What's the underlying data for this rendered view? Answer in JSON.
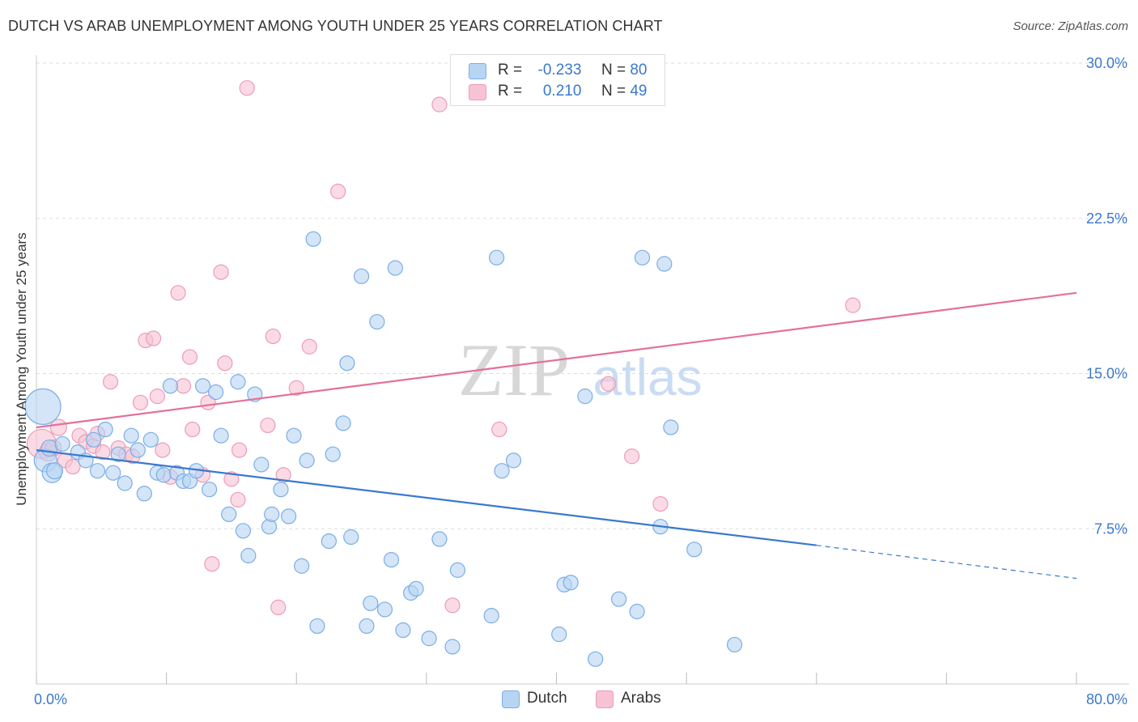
{
  "title": "DUTCH VS ARAB UNEMPLOYMENT AMONG YOUTH UNDER 25 YEARS CORRELATION CHART",
  "source": "Source: ZipAtlas.com",
  "watermark": {
    "zip": "ZIP",
    "atlas": "atlas"
  },
  "legend": {
    "r_label": "R =",
    "n_label": "N =",
    "dutch": {
      "r": "-0.233",
      "n": "80"
    },
    "arabs": {
      "r": "0.210",
      "n": "49"
    }
  },
  "colors": {
    "dutch_fill": "#b8d4f3",
    "dutch_stroke": "#7aaee6",
    "dutch_line": "#3a78d0",
    "arabs_fill": "#f7c3d4",
    "arabs_stroke": "#ee9bb6",
    "arabs_line": "#e56f9a",
    "tick_label": "#3a78d0",
    "grid": "#dddddd"
  },
  "chart_data": {
    "type": "scatter",
    "xlabel": "",
    "ylabel": "Unemployment Among Youth under 25 years",
    "xlim": [
      0,
      80
    ],
    "ylim": [
      0,
      30
    ],
    "x_tick_labels": [
      {
        "value": 0,
        "label": "0.0%"
      },
      {
        "value": 80,
        "label": "80.0%"
      }
    ],
    "y_tick_labels": [
      {
        "value": 7.5,
        "label": "7.5%"
      },
      {
        "value": 15,
        "label": "15.0%"
      },
      {
        "value": 22.5,
        "label": "22.5%"
      },
      {
        "value": 30,
        "label": "30.0%"
      }
    ],
    "grid": true,
    "legend_position": "top-center",
    "series": [
      {
        "name": "Dutch",
        "trend": {
          "x0": 0,
          "y0": 11.3,
          "x1": 60,
          "y1": 6.7,
          "dashed_to_x": 80,
          "dashed_to_y": 5.1
        },
        "points": [
          [
            0.5,
            13.4,
            22
          ],
          [
            0.7,
            10.8,
            14
          ],
          [
            1.0,
            11.4,
            10
          ],
          [
            1.2,
            10.2,
            12
          ],
          [
            1.4,
            10.3,
            10
          ],
          [
            2.0,
            11.6,
            9
          ],
          [
            3.2,
            11.2,
            9
          ],
          [
            3.8,
            10.8,
            9
          ],
          [
            4.4,
            11.8,
            9
          ],
          [
            4.7,
            10.3,
            9
          ],
          [
            5.3,
            12.3,
            9
          ],
          [
            5.9,
            10.2,
            9
          ],
          [
            6.3,
            11.1,
            9
          ],
          [
            6.8,
            9.7,
            9
          ],
          [
            7.3,
            12.0,
            9
          ],
          [
            7.8,
            11.3,
            9
          ],
          [
            8.3,
            9.2,
            9
          ],
          [
            8.8,
            11.8,
            9
          ],
          [
            9.3,
            10.2,
            9
          ],
          [
            9.8,
            10.1,
            9
          ],
          [
            10.3,
            14.4,
            9
          ],
          [
            10.8,
            10.2,
            9
          ],
          [
            11.3,
            9.8,
            9
          ],
          [
            11.8,
            9.8,
            9
          ],
          [
            12.3,
            10.3,
            9
          ],
          [
            12.8,
            14.4,
            9
          ],
          [
            13.3,
            9.4,
            9
          ],
          [
            13.8,
            14.1,
            9
          ],
          [
            14.2,
            12.0,
            9
          ],
          [
            14.8,
            8.2,
            9
          ],
          [
            15.5,
            14.6,
            9
          ],
          [
            15.9,
            7.4,
            9
          ],
          [
            16.3,
            6.2,
            9
          ],
          [
            16.8,
            14.0,
            9
          ],
          [
            17.3,
            10.6,
            9
          ],
          [
            17.9,
            7.6,
            9
          ],
          [
            18.1,
            8.2,
            9
          ],
          [
            18.8,
            9.4,
            9
          ],
          [
            19.4,
            8.1,
            9
          ],
          [
            19.8,
            12.0,
            9
          ],
          [
            20.4,
            5.7,
            9
          ],
          [
            20.8,
            10.8,
            9
          ],
          [
            21.3,
            21.5,
            9
          ],
          [
            21.6,
            2.8,
            9
          ],
          [
            22.5,
            6.9,
            9
          ],
          [
            22.8,
            11.1,
            9
          ],
          [
            23.6,
            12.6,
            9
          ],
          [
            23.9,
            15.5,
            9
          ],
          [
            24.2,
            7.1,
            9
          ],
          [
            25.0,
            19.7,
            9
          ],
          [
            25.4,
            2.8,
            9
          ],
          [
            25.7,
            3.9,
            9
          ],
          [
            26.2,
            17.5,
            9
          ],
          [
            26.8,
            3.6,
            9
          ],
          [
            27.3,
            6.0,
            9
          ],
          [
            27.6,
            20.1,
            9
          ],
          [
            28.2,
            2.6,
            9
          ],
          [
            28.8,
            4.4,
            9
          ],
          [
            29.2,
            4.6,
            9
          ],
          [
            30.2,
            2.2,
            9
          ],
          [
            31.0,
            7.0,
            9
          ],
          [
            32.0,
            1.8,
            9
          ],
          [
            32.4,
            5.5,
            9
          ],
          [
            35.0,
            3.3,
            9
          ],
          [
            35.4,
            20.6,
            9
          ],
          [
            35.8,
            10.3,
            9
          ],
          [
            36.7,
            10.8,
            9
          ],
          [
            40.2,
            2.4,
            9
          ],
          [
            40.6,
            4.8,
            9
          ],
          [
            41.1,
            4.9,
            9
          ],
          [
            42.2,
            13.9,
            9
          ],
          [
            43.0,
            1.2,
            9
          ],
          [
            44.8,
            4.1,
            9
          ],
          [
            46.2,
            3.5,
            9
          ],
          [
            46.6,
            20.6,
            9
          ],
          [
            48.0,
            7.6,
            9
          ],
          [
            48.3,
            20.3,
            9
          ],
          [
            48.8,
            12.4,
            9
          ],
          [
            50.6,
            6.5,
            9
          ],
          [
            53.7,
            1.9,
            9
          ]
        ]
      },
      {
        "name": "Arabs",
        "trend": {
          "x0": 0,
          "y0": 12.4,
          "x1": 80,
          "y1": 18.9
        },
        "points": [
          [
            0.4,
            11.6,
            18
          ],
          [
            0.9,
            11.2,
            11
          ],
          [
            1.3,
            11.4,
            10
          ],
          [
            1.7,
            12.4,
            10
          ],
          [
            2.2,
            10.8,
            9
          ],
          [
            2.8,
            10.5,
            9
          ],
          [
            3.3,
            12.0,
            9
          ],
          [
            3.8,
            11.7,
            9
          ],
          [
            4.4,
            11.5,
            9
          ],
          [
            4.7,
            12.1,
            9
          ],
          [
            5.1,
            11.2,
            9
          ],
          [
            5.7,
            14.6,
            9
          ],
          [
            6.3,
            11.4,
            9
          ],
          [
            6.9,
            11.1,
            9
          ],
          [
            7.4,
            11.0,
            9
          ],
          [
            8.0,
            13.6,
            9
          ],
          [
            8.4,
            16.6,
            9
          ],
          [
            9.0,
            16.7,
            9
          ],
          [
            9.3,
            13.9,
            9
          ],
          [
            9.7,
            11.3,
            9
          ],
          [
            10.3,
            10.0,
            9
          ],
          [
            10.9,
            18.9,
            9
          ],
          [
            11.3,
            14.4,
            9
          ],
          [
            11.8,
            15.8,
            9
          ],
          [
            12.0,
            12.3,
            9
          ],
          [
            12.8,
            10.1,
            9
          ],
          [
            13.2,
            13.6,
            9
          ],
          [
            13.5,
            5.8,
            9
          ],
          [
            14.2,
            19.9,
            9
          ],
          [
            14.5,
            15.5,
            9
          ],
          [
            15.0,
            9.9,
            9
          ],
          [
            15.5,
            8.9,
            9
          ],
          [
            15.6,
            11.3,
            9
          ],
          [
            16.2,
            28.8,
            9
          ],
          [
            17.8,
            12.5,
            9
          ],
          [
            18.2,
            16.8,
            9
          ],
          [
            18.6,
            3.7,
            9
          ],
          [
            19.0,
            10.1,
            9
          ],
          [
            20.0,
            14.3,
            9
          ],
          [
            21.0,
            16.3,
            9
          ],
          [
            23.2,
            23.8,
            9
          ],
          [
            31.0,
            28.0,
            9
          ],
          [
            32.0,
            3.8,
            9
          ],
          [
            35.0,
            28.9,
            9
          ],
          [
            35.6,
            12.3,
            9
          ],
          [
            44.0,
            14.5,
            9
          ],
          [
            45.8,
            11.0,
            9
          ],
          [
            48.0,
            8.7,
            9
          ],
          [
            62.8,
            18.3,
            9
          ]
        ]
      }
    ]
  },
  "bottom_legend": {
    "dutch": "Dutch",
    "arabs": "Arabs"
  }
}
